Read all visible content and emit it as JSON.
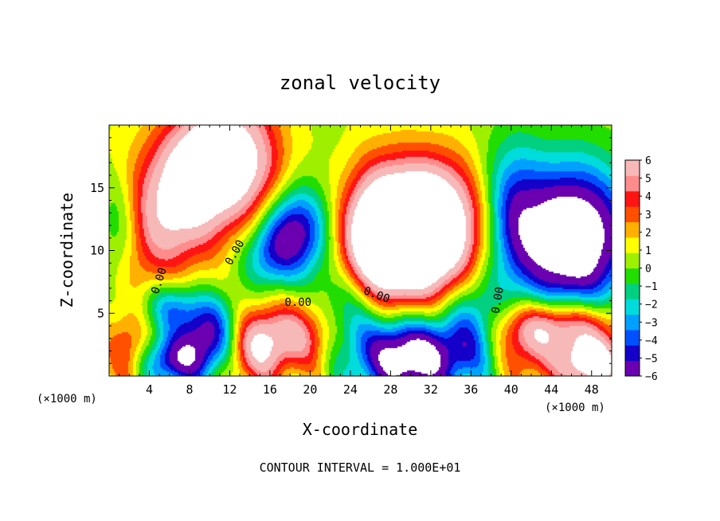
{
  "chart_data": {
    "type": "heatmap",
    "title": "zonal velocity",
    "xlabel": "X-coordinate",
    "ylabel": "Z-coordinate",
    "x_unit_left": "(×1000 m)",
    "x_unit_right": "(×1000 m)",
    "xlim": [
      0,
      50
    ],
    "ylim": [
      0,
      20
    ],
    "x_ticks": [
      4,
      8,
      12,
      16,
      20,
      24,
      28,
      32,
      36,
      40,
      44,
      48
    ],
    "x_tick_labels": [
      "4",
      "8",
      "12",
      "16",
      "20",
      "24",
      "28",
      "32",
      "36",
      "40",
      "44",
      "48"
    ],
    "y_ticks": [
      5,
      10,
      15
    ],
    "y_tick_labels": [
      "5",
      "10",
      "15"
    ],
    "colorbar": {
      "ticks": [
        6,
        5,
        4,
        3,
        2,
        1,
        0,
        -1,
        -2,
        -3,
        -4,
        -5,
        -6
      ],
      "tick_labels": [
        "6",
        "5",
        "4",
        "3",
        "2",
        "1",
        "0",
        "−1",
        "−2",
        "−3",
        "−4",
        "−5",
        "−6"
      ],
      "range": [
        -6,
        6
      ],
      "colors": [
        "#6a00b0",
        "#1400c8",
        "#0050ff",
        "#00a0ff",
        "#00dcdc",
        "#00d080",
        "#22dd00",
        "#9ef000",
        "#ffff00",
        "#ffb000",
        "#ff5000",
        "#ff1414",
        "#ff8c8c",
        "#f7b8b8"
      ],
      "out_of_range": "#ffffff"
    },
    "features": [
      {
        "x": 10,
        "z": 17,
        "value": 8,
        "sx": 2.8,
        "sz": 3.5,
        "angle": -25
      },
      {
        "x": 5.5,
        "z": 13,
        "value": 5,
        "sx": 3.5,
        "sz": 4.5,
        "angle": -25
      },
      {
        "x": 14.5,
        "z": 16,
        "value": 4,
        "sx": 2.5,
        "sz": 4,
        "angle": 0
      },
      {
        "x": 30,
        "z": 10.5,
        "value": 11,
        "sx": 4.5,
        "sz": 3.2,
        "angle": 0
      },
      {
        "x": 31.5,
        "z": 14,
        "value": 5,
        "sx": 3.5,
        "sz": 3,
        "angle": 0
      },
      {
        "x": 26.5,
        "z": 11,
        "value": 4,
        "sx": 2,
        "sz": 4,
        "angle": 0
      },
      {
        "x": 46,
        "z": 11,
        "value": -10,
        "sx": 4,
        "sz": 4,
        "angle": 0
      },
      {
        "x": 40,
        "z": 13,
        "value": -4,
        "sx": 2,
        "sz": 4,
        "angle": 0
      },
      {
        "x": 18.5,
        "z": 11.5,
        "value": -7,
        "sx": 2.5,
        "sz": 2.5,
        "angle": 0
      },
      {
        "x": 15.5,
        "z": 9.5,
        "value": -3,
        "sx": 2,
        "sz": 2,
        "angle": 0
      },
      {
        "x": 1,
        "z": 12,
        "value": -3,
        "sx": 1.5,
        "sz": 3,
        "angle": 0
      },
      {
        "x": 30,
        "z": 1.5,
        "value": -9,
        "sx": 3.5,
        "sz": 2.2,
        "angle": 0
      },
      {
        "x": 24,
        "z": 5,
        "value": -4,
        "sx": 2.5,
        "sz": 3,
        "angle": 0
      },
      {
        "x": 18.5,
        "z": 3.2,
        "value": 5,
        "sx": 3.5,
        "sz": 2,
        "angle": 0
      },
      {
        "x": 14.5,
        "z": 2,
        "value": 4,
        "sx": 2,
        "sz": 2,
        "angle": 0
      },
      {
        "x": 10,
        "z": 3.5,
        "value": -6,
        "sx": 2,
        "sz": 2,
        "angle": 0
      },
      {
        "x": 6,
        "z": 5.5,
        "value": -4,
        "sx": 2,
        "sz": 1.5,
        "angle": 0
      },
      {
        "x": 2,
        "z": 2,
        "value": 3.5,
        "sx": 1.5,
        "sz": 2,
        "angle": 0
      },
      {
        "x": 6.5,
        "z": 1.2,
        "value": -6,
        "sx": 2.5,
        "sz": 1.5,
        "angle": 0
      },
      {
        "x": 45,
        "z": 4,
        "value": 6,
        "sx": 4,
        "sz": 1.5,
        "angle": 0
      },
      {
        "x": 48,
        "z": 1,
        "value": 8,
        "sx": 2.5,
        "sz": 1.5,
        "angle": 0
      },
      {
        "x": 41.5,
        "z": 2,
        "value": 3,
        "sx": 2,
        "sz": 2,
        "angle": 0
      },
      {
        "x": 36,
        "z": 4,
        "value": -4,
        "sx": 2,
        "sz": 3,
        "angle": 0
      }
    ],
    "contour_labels": [
      {
        "text": "0.00",
        "x": 5.3,
        "z": 7.5,
        "angle": -72
      },
      {
        "text": "0.00",
        "x": 12.8,
        "z": 9.7,
        "angle": -60
      },
      {
        "text": "0.00",
        "x": 18.8,
        "z": 5.6,
        "angle": 0
      },
      {
        "text": "0.00",
        "x": 26.5,
        "z": 6.2,
        "angle": 20
      },
      {
        "text": "0.00",
        "x": 39,
        "z": 6,
        "angle": -80
      }
    ],
    "contour_interval_label": "CONTOUR INTERVAL = 1.000E+01"
  }
}
